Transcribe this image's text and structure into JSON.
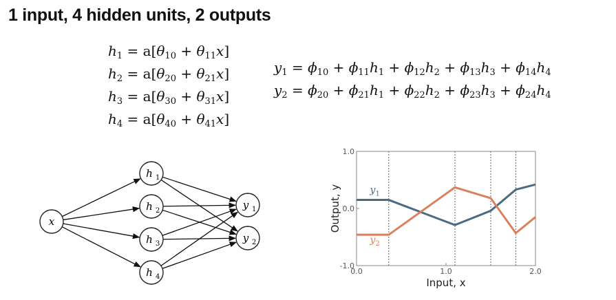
{
  "title": "1 input, 4 hidden units, 2 outputs",
  "equations": {
    "hidden": [
      {
        "lhs": "h",
        "lhs_sub": "1",
        "a": "a",
        "t0": "θ",
        "t0_sub": "10",
        "t1": "θ",
        "t1_sub": "11",
        "x": "x"
      },
      {
        "lhs": "h",
        "lhs_sub": "2",
        "a": "a",
        "t0": "θ",
        "t0_sub": "20",
        "t1": "θ",
        "t1_sub": "21",
        "x": "x"
      },
      {
        "lhs": "h",
        "lhs_sub": "3",
        "a": "a",
        "t0": "θ",
        "t0_sub": "30",
        "t1": "θ",
        "t1_sub": "31",
        "x": "x"
      },
      {
        "lhs": "h",
        "lhs_sub": "4",
        "a": "a",
        "t0": "θ",
        "t0_sub": "40",
        "t1": "θ",
        "t1_sub": "41",
        "x": "x"
      }
    ],
    "outputs": [
      {
        "lhs": "y",
        "lhs_sub": "1",
        "phi": "ϕ",
        "subs": [
          "10",
          "11",
          "12",
          "13",
          "14"
        ]
      },
      {
        "lhs": "y",
        "lhs_sub": "2",
        "phi": "ϕ",
        "subs": [
          "20",
          "21",
          "22",
          "23",
          "24"
        ]
      }
    ]
  },
  "network": {
    "input": {
      "label": "x"
    },
    "hidden": [
      {
        "label": "h",
        "sub": "1"
      },
      {
        "label": "h",
        "sub": "2"
      },
      {
        "label": "h",
        "sub": "3"
      },
      {
        "label": "h",
        "sub": "4"
      }
    ],
    "outputs": [
      {
        "label": "y",
        "sub": "1"
      },
      {
        "label": "y",
        "sub": "2"
      }
    ]
  },
  "chart_data": {
    "type": "line",
    "xlabel": "Input, x",
    "ylabel": "Output, y",
    "xlim": [
      0.0,
      2.0
    ],
    "ylim": [
      -1.0,
      1.0
    ],
    "xticks": [
      "0.0",
      "1.0",
      "2.0"
    ],
    "yticks": [
      "1.0",
      "0.0",
      "-1.0"
    ],
    "joints": [
      0.36,
      1.1,
      1.5,
      1.78
    ],
    "series": [
      {
        "name": "y",
        "name_sub": "1",
        "color": "#4a6b82",
        "x": [
          0.0,
          0.36,
          1.1,
          1.5,
          1.78,
          2.0
        ],
        "y": [
          0.15,
          0.15,
          -0.29,
          -0.04,
          0.33,
          0.42
        ]
      },
      {
        "name": "y",
        "name_sub": "2",
        "color": "#d9805e",
        "x": [
          0.0,
          0.36,
          1.1,
          1.5,
          1.78,
          2.0
        ],
        "y": [
          -0.46,
          -0.46,
          0.37,
          0.18,
          -0.43,
          -0.15
        ]
      }
    ]
  }
}
